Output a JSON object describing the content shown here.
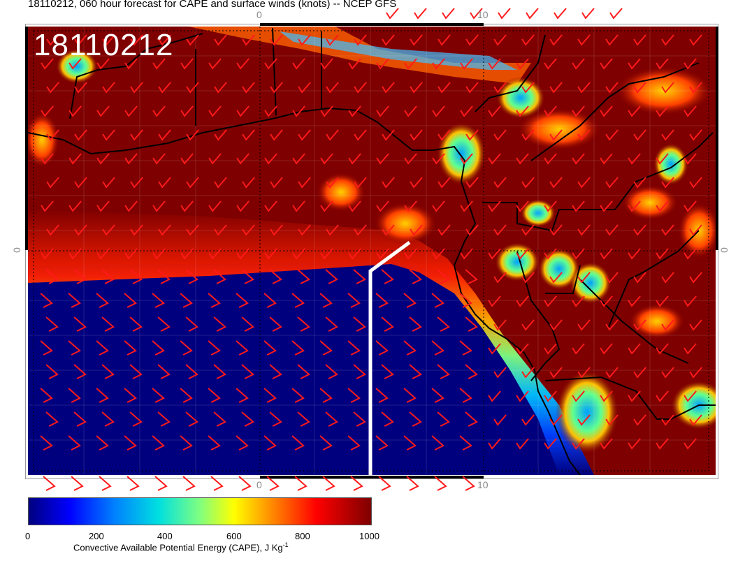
{
  "title": "18110212, 060 hour forecast for CAPE and surface winds (knots) -- NCEP GFS",
  "stamp": "18110212",
  "ticks": {
    "top_left": "0",
    "top_right": "10",
    "bottom_left": "0",
    "bottom_right": "10",
    "left": "0",
    "right": "0"
  },
  "colorbar": {
    "labels": [
      "0",
      "200",
      "400",
      "600",
      "800",
      "1000"
    ],
    "title": "Convective Available Potential Energy (CAPE), J Kg",
    "title_exp": "-1"
  },
  "colors": {
    "cape_high": "#7f0000",
    "cape_low": "#00007f",
    "wind_barb": "#ff0000",
    "coast": "#000000",
    "track": "#ffffff"
  }
}
